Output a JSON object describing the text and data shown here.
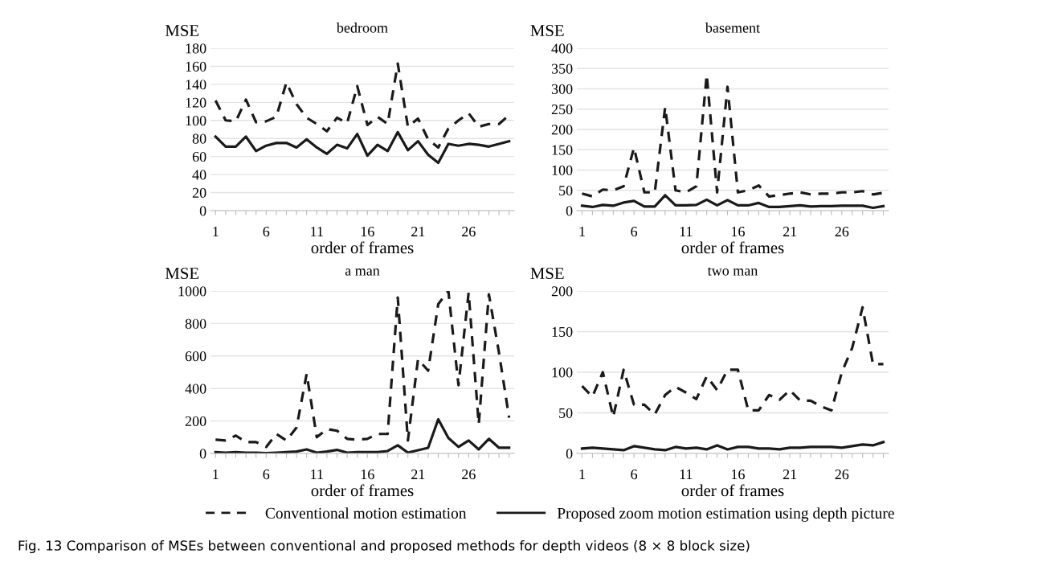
{
  "chart_data": [
    {
      "type": "line",
      "title": "bedroom",
      "xlabel": "order of frames",
      "ylabel": "MSE",
      "categories": [
        "1",
        null,
        null,
        null,
        null,
        "6",
        null,
        null,
        null,
        null,
        "11",
        null,
        null,
        null,
        null,
        "16",
        null,
        null,
        null,
        null,
        "21",
        null,
        null,
        null,
        null,
        "26",
        null,
        null,
        null,
        null
      ],
      "ylim": [
        0,
        180
      ],
      "yticks": [
        0,
        20,
        40,
        60,
        80,
        100,
        120,
        140,
        160,
        180
      ],
      "grid": "y",
      "legend": "bottom",
      "series": [
        {
          "name": "Conventional motion estimation",
          "color": "#1a1a1a",
          "line_style": "dashed",
          "values": [
            122,
            100,
            99,
            123,
            98,
            99,
            104,
            142,
            118,
            103,
            96,
            88,
            103,
            97,
            138,
            95,
            104,
            96,
            163,
            93,
            102,
            79,
            70,
            91,
            100,
            108,
            93,
            96,
            96,
            106
          ]
        },
        {
          "name": "Proposed zoom motion estimation using depth picture",
          "color": "#1a1a1a",
          "line_style": "solid",
          "values": [
            82,
            71,
            71,
            82,
            66,
            72,
            75,
            75,
            70,
            79,
            70,
            63,
            73,
            69,
            85,
            61,
            73,
            66,
            87,
            67,
            77,
            62,
            53,
            74,
            72,
            74,
            73,
            71,
            74,
            77
          ]
        }
      ]
    },
    {
      "type": "line",
      "title": "basement",
      "xlabel": "order of frames",
      "ylabel": "MSE",
      "categories": [
        "1",
        null,
        null,
        null,
        null,
        "6",
        null,
        null,
        null,
        null,
        "11",
        null,
        null,
        null,
        null,
        "16",
        null,
        null,
        null,
        null,
        "21",
        null,
        null,
        null,
        null,
        "26",
        null,
        null,
        null,
        null
      ],
      "ylim": [
        0,
        400
      ],
      "yticks": [
        0,
        50,
        100,
        150,
        200,
        250,
        300,
        350,
        400
      ],
      "grid": "y",
      "series": [
        {
          "color": "#1a1a1a",
          "line_style": "dashed",
          "values": [
            42,
            35,
            52,
            50,
            60,
            155,
            45,
            45,
            255,
            50,
            45,
            60,
            335,
            45,
            305,
            45,
            50,
            62,
            35,
            38,
            42,
            45,
            40,
            42,
            42,
            45,
            45,
            48,
            40,
            44
          ]
        },
        {
          "color": "#1a1a1a",
          "line_style": "solid",
          "values": [
            12,
            9,
            14,
            12,
            20,
            24,
            10,
            10,
            38,
            13,
            13,
            14,
            27,
            13,
            26,
            13,
            13,
            19,
            9,
            9,
            11,
            13,
            10,
            11,
            11,
            12,
            12,
            12,
            7,
            11
          ]
        }
      ]
    },
    {
      "type": "line",
      "title": "a man",
      "xlabel": "order of frames",
      "ylabel": "MSE",
      "categories": [
        "1",
        null,
        null,
        null,
        null,
        "6",
        null,
        null,
        null,
        null,
        "11",
        null,
        null,
        null,
        null,
        "16",
        null,
        null,
        null,
        null,
        "21",
        null,
        null,
        null,
        null,
        "26",
        null,
        null,
        null,
        null
      ],
      "ylim": [
        0,
        1000
      ],
      "yticks": [
        0,
        200,
        400,
        600,
        800,
        1000
      ],
      "grid": "y",
      "series": [
        {
          "color": "#1a1a1a",
          "line_style": "dashed",
          "values": [
            85,
            80,
            110,
            70,
            70,
            40,
            120,
            80,
            160,
            490,
            100,
            150,
            140,
            90,
            85,
            90,
            120,
            120,
            960,
            80,
            580,
            510,
            920,
            1000,
            420,
            990,
            180,
            980,
            620,
            220
          ]
        },
        {
          "color": "#1a1a1a",
          "line_style": "solid",
          "values": [
            8,
            5,
            8,
            5,
            5,
            2,
            5,
            8,
            12,
            25,
            5,
            12,
            22,
            5,
            8,
            8,
            8,
            15,
            50,
            5,
            20,
            35,
            210,
            95,
            40,
            80,
            25,
            90,
            35,
            35
          ]
        }
      ]
    },
    {
      "type": "line",
      "title": "two man",
      "xlabel": "order of frames",
      "ylabel": "MSE",
      "categories": [
        "1",
        null,
        null,
        null,
        null,
        "6",
        null,
        null,
        null,
        null,
        "11",
        null,
        null,
        null,
        null,
        "16",
        null,
        null,
        null,
        null,
        "21",
        null,
        null,
        null,
        null,
        "26",
        null,
        null,
        null,
        null
      ],
      "ylim": [
        0,
        200
      ],
      "yticks": [
        0,
        50,
        100,
        150,
        200
      ],
      "grid": "y",
      "annotations": [
        "Fig. 13 Comparison of MSEs between conventional and proposed methods for depth videos (8 × 8 block size)"
      ],
      "series": [
        {
          "color": "#1a1a1a",
          "line_style": "dashed",
          "values": [
            83,
            70,
            100,
            45,
            103,
            60,
            60,
            48,
            72,
            82,
            75,
            67,
            95,
            78,
            103,
            103,
            53,
            53,
            72,
            66,
            78,
            65,
            65,
            58,
            53,
            100,
            130,
            180,
            110,
            110
          ]
        },
        {
          "color": "#1a1a1a",
          "line_style": "solid",
          "values": [
            6,
            7,
            6,
            5,
            4,
            9,
            7,
            5,
            4,
            8,
            6,
            7,
            5,
            10,
            5,
            8,
            8,
            6,
            6,
            5,
            7,
            7,
            8,
            8,
            8,
            7,
            9,
            11,
            10,
            14
          ]
        }
      ]
    }
  ]
}
